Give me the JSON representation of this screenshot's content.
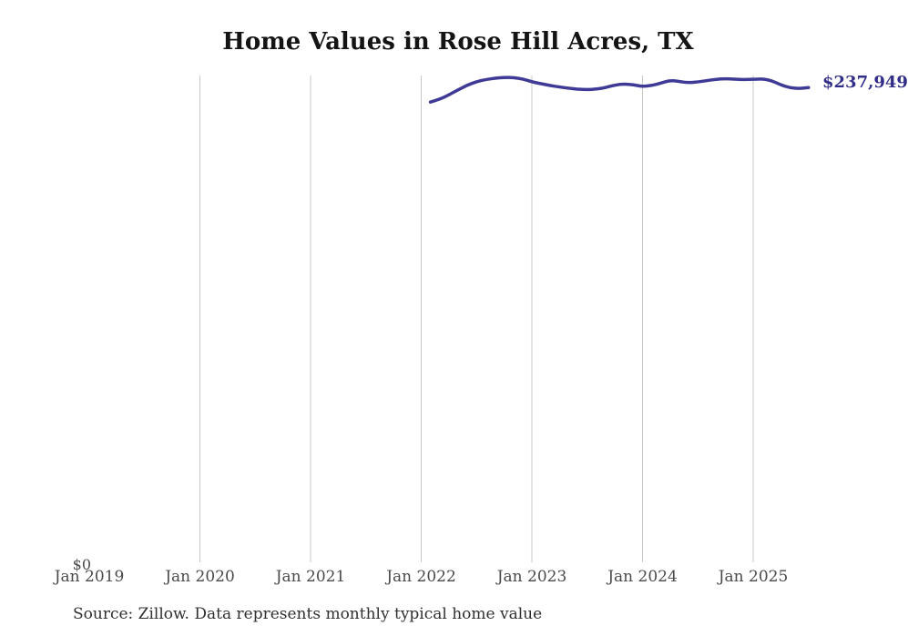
{
  "page": {
    "title": "Home Values in Rose Hill Acres, TX",
    "source_note": "Source: Zillow. Data represents monthly typical home value"
  },
  "colors": {
    "line": "#3e3a96",
    "end_label": "#312e8a",
    "gridline": "#c8c8c8",
    "axis_label": "#4a4a4a",
    "title": "#141414",
    "source": "#303030"
  },
  "chart_data": {
    "type": "line",
    "title": "Home Values in Rose Hill Acres, TX",
    "series_name": "Monthly typical home value",
    "unit": "USD",
    "ylim": [
      0,
      244000
    ],
    "grid": "vertical-only",
    "legend_position": "none",
    "y_zero_label": "$0",
    "end_value_label": "$237,949",
    "end_value": 237949,
    "x_ticks": [
      {
        "label": "Jan 2019",
        "year": 2019,
        "gridline": false
      },
      {
        "label": "Jan 2020",
        "year": 2020,
        "gridline": true
      },
      {
        "label": "Jan 2021",
        "year": 2021,
        "gridline": true
      },
      {
        "label": "Jan 2022",
        "year": 2022,
        "gridline": true
      },
      {
        "label": "Jan 2023",
        "year": 2023,
        "gridline": true
      },
      {
        "label": "Jan 2024",
        "year": 2024,
        "gridline": true
      },
      {
        "label": "Jan 2025",
        "year": 2025,
        "gridline": true
      }
    ],
    "x": [
      "Jan 2022",
      "Feb 2022",
      "Mar 2022",
      "Apr 2022",
      "May 2022",
      "Jun 2022",
      "Jul 2022",
      "Aug 2022",
      "Sep 2022",
      "Oct 2022",
      "Nov 2022",
      "Dec 2022",
      "Jan 2023",
      "Feb 2023",
      "Mar 2023",
      "Apr 2023",
      "May 2023",
      "Jun 2023",
      "Jul 2023",
      "Aug 2023",
      "Sep 2023",
      "Oct 2023",
      "Nov 2023",
      "Dec 2023",
      "Jan 2024",
      "Feb 2024",
      "Mar 2024",
      "Apr 2024",
      "May 2024",
      "Jun 2024",
      "Jul 2024",
      "Aug 2024",
      "Sep 2024",
      "Oct 2024",
      "Nov 2024",
      "Dec 2024",
      "Jan 2025",
      "Feb 2025",
      "Mar 2025",
      "Apr 2025",
      "May 2025",
      "Jun 2025"
    ],
    "values": [
      230700,
      232100,
      234300,
      236800,
      239200,
      240900,
      242000,
      242700,
      243100,
      243000,
      242300,
      240800,
      239900,
      239000,
      238300,
      237600,
      237100,
      236950,
      237200,
      238000,
      239200,
      239800,
      239400,
      238500,
      239000,
      240200,
      241600,
      241000,
      240400,
      240800,
      241500,
      242100,
      242400,
      242200,
      242000,
      242100,
      242300,
      241500,
      239300,
      237800,
      237500,
      237949
    ]
  }
}
